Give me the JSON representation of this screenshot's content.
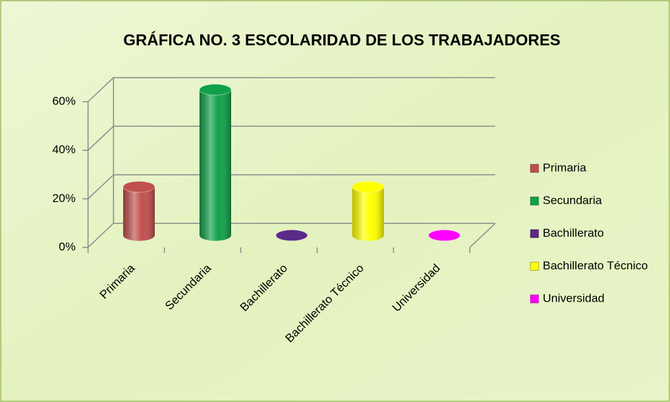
{
  "chart_data": {
    "type": "bar",
    "title": "GRÁFICA NO. 3 ESCOLARIDAD DE LOS TRABAJADORES",
    "categories": [
      "Primaria",
      "Secundaria",
      "Bachillerato",
      "Bachillerato Técnico",
      "Universidad"
    ],
    "values": [
      20,
      60,
      0,
      20,
      0
    ],
    "colors": [
      "#c0504d",
      "#10a048",
      "#5c2a88",
      "#ffff00",
      "#ff00ff"
    ],
    "ylim": [
      0,
      60
    ],
    "yticks": [
      {
        "value": 0,
        "label": "0%"
      },
      {
        "value": 20,
        "label": "20%"
      },
      {
        "value": 40,
        "label": "40%"
      },
      {
        "value": 60,
        "label": "60%"
      }
    ],
    "grid": true,
    "legend": "right"
  }
}
